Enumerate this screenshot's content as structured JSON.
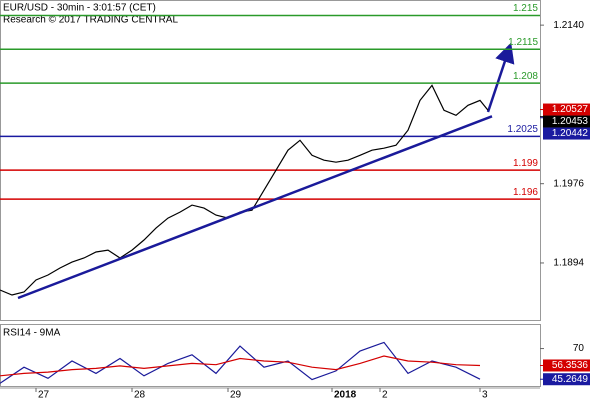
{
  "chart_data": [
    {
      "type": "line",
      "title": "EUR/USD - 30min - 3:01:57 (CET)",
      "subtitle": "Research © 2017 TRADING CENTRAL",
      "x": [
        0,
        6,
        12,
        18,
        24,
        30,
        36,
        42,
        48,
        54,
        60,
        66,
        72,
        78,
        84,
        90,
        96,
        102,
        108,
        114,
        120,
        126,
        132,
        138,
        144,
        150,
        156,
        162,
        168,
        174,
        180,
        186,
        192,
        198,
        204,
        210,
        216,
        222,
        228,
        234,
        240,
        244
      ],
      "series": [
        {
          "color": "#000000",
          "values": [
            1.1866,
            1.18609,
            1.1864,
            1.18764,
            1.18815,
            1.18888,
            1.18949,
            1.18991,
            1.19053,
            1.19073,
            1.18991,
            1.19073,
            1.19177,
            1.19301,
            1.19404,
            1.19466,
            1.19538,
            1.19507,
            1.19435,
            1.19404,
            1.19466,
            1.19486,
            1.19693,
            1.199,
            1.20106,
            1.20209,
            1.20054,
            1.20003,
            1.19982,
            1.20003,
            1.20054,
            1.20106,
            1.20127,
            1.20158,
            1.20313,
            1.20622,
            1.20777,
            1.20519,
            1.20467,
            1.20571,
            1.20622,
            1.20519
          ]
        }
      ],
      "trendline": {
        "color": "#1a1a9a",
        "x": [
          9,
          246
        ],
        "values": [
          1.18578,
          1.20457
        ]
      },
      "levels": [
        {
          "value": 1.215,
          "color": "#2a9a2a"
        },
        {
          "value": 1.2115,
          "color": "#2a9a2a"
        },
        {
          "value": 1.208,
          "color": "#2a9a2a"
        },
        {
          "value": 1.2025,
          "color": "#1a1aa0"
        },
        {
          "value": 1.199,
          "color": "#d40000"
        },
        {
          "value": 1.196,
          "color": "#d40000"
        }
      ],
      "price_tags": [
        {
          "value": 1.20527,
          "color": "#d40000"
        },
        {
          "value": 1.20453,
          "color": "#000000"
        },
        {
          "value": 1.20442,
          "color": "#1a1aa0"
        }
      ],
      "xlim": [
        0,
        270
      ],
      "xticks": [
        {
          "value": 18,
          "label": "27"
        },
        {
          "value": 66,
          "label": "28"
        },
        {
          "value": 114,
          "label": "29"
        },
        {
          "value": 166,
          "label": "2018"
        },
        {
          "value": 190,
          "label": "2"
        },
        {
          "value": 240,
          "label": "3"
        }
      ],
      "ylim": [
        1.1835,
        1.2166
      ],
      "yticks": [
        {
          "value": 1.214,
          "label": "1.2140"
        },
        1.1976,
        1.1894
      ]
    },
    {
      "type": "line",
      "title": "RSI14 - 9MA",
      "x": [
        0,
        12,
        24,
        36,
        48,
        60,
        72,
        84,
        96,
        108,
        120,
        132,
        144,
        156,
        168,
        180,
        192,
        204,
        216,
        228,
        240
      ],
      "series": [
        {
          "color": "#1a1a9a",
          "values": [
            42,
            55,
            46,
            60,
            50,
            62,
            48,
            58,
            65,
            50,
            72,
            55,
            60,
            45,
            52,
            68,
            75,
            50,
            60,
            55,
            45.2649
          ]
        },
        {
          "color": "#d40000",
          "values": [
            48,
            50,
            51,
            53,
            54,
            56,
            54,
            56,
            58,
            57,
            62,
            60,
            59,
            55,
            53,
            58,
            64,
            60,
            59,
            57,
            56.3536
          ]
        }
      ],
      "price_tags": [
        {
          "value": 56.3536,
          "color": "#d40000"
        },
        {
          "value": 45.2649,
          "color": "#1a1aa0"
        }
      ],
      "xlim": [
        0,
        270
      ],
      "ylim": [
        39,
        89
      ],
      "yticks": [
        70
      ]
    }
  ]
}
